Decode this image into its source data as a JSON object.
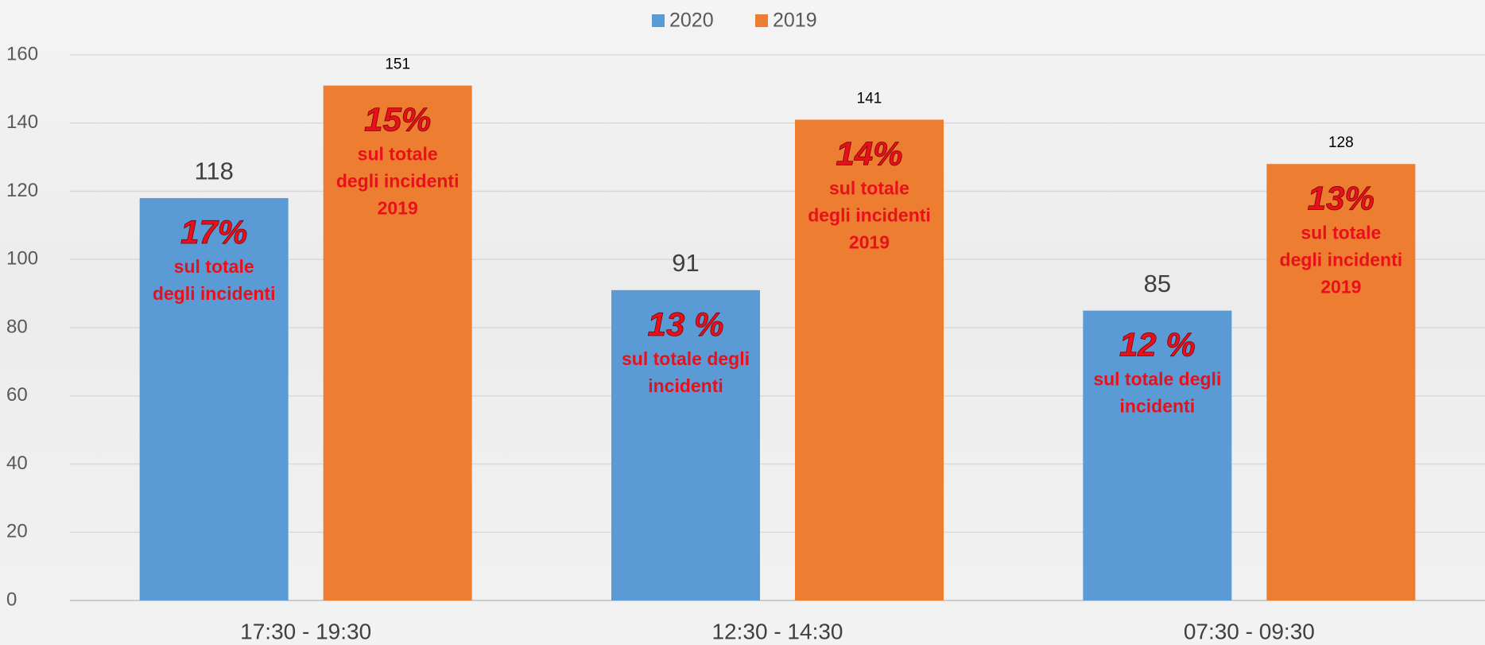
{
  "chart_data": {
    "type": "bar",
    "categories": [
      "17:30 - 19:30",
      "12:30 - 14:30",
      "07:30 - 09:30"
    ],
    "series": [
      {
        "name": "2020",
        "color": "#5b9bd5",
        "values": [
          118,
          91,
          85
        ],
        "annotations": [
          {
            "percent": "17%",
            "lines": [
              "sul totale",
              "degli incidenti"
            ]
          },
          {
            "percent": "13 %",
            "lines": [
              "sul totale degli",
              "incidenti"
            ]
          },
          {
            "percent": "12 %",
            "lines": [
              "sul totale degli",
              "incidenti"
            ]
          }
        ]
      },
      {
        "name": "2019",
        "color": "#ed7d31",
        "values": [
          151,
          141,
          128
        ],
        "annotations": [
          {
            "percent": "15%",
            "lines": [
              "sul totale",
              "degli incidenti",
              "2019"
            ]
          },
          {
            "percent": "14%",
            "lines": [
              "sul totale",
              "degli incidenti",
              "2019"
            ]
          },
          {
            "percent": "13%",
            "lines": [
              "sul totale",
              "degli incidenti",
              "2019"
            ]
          }
        ]
      }
    ],
    "ylim": [
      0,
      160
    ],
    "yticks": [
      0,
      20,
      40,
      60,
      80,
      100,
      120,
      140,
      160
    ],
    "grid": true,
    "legend": "top",
    "annotation_color": "#e8101a"
  }
}
